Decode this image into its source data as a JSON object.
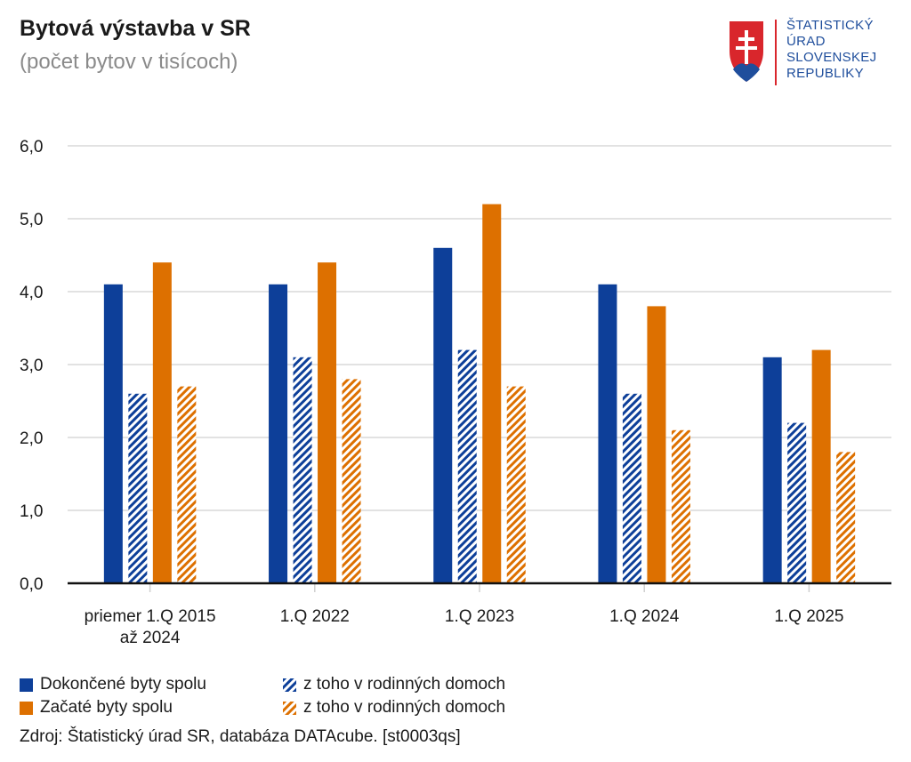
{
  "header": {
    "title": "Bytová výstavba v SR",
    "subtitle": "(počet bytov v tisícoch)"
  },
  "logo": {
    "line1": "ŠTATISTICKÝ",
    "line2": "ÚRAD",
    "line3": "SLOVENSKEJ",
    "line4": "REPUBLIKY"
  },
  "source": "Zdroj: Štatistický úrad SR, databáza DATAcube. [st0003qs]",
  "chart_data": {
    "type": "bar",
    "categories": [
      "priemer 1.Q 2015\naž 2024",
      "1.Q 2022",
      "1.Q 2023",
      "1.Q 2024",
      "1.Q 2025"
    ],
    "series": [
      {
        "name": "Dokončené byty spolu",
        "values": [
          4.1,
          4.1,
          4.6,
          4.1,
          3.1
        ],
        "color": "#0d3f99",
        "pattern": "solid"
      },
      {
        "name": "z toho v rodinných domoch",
        "values": [
          2.6,
          3.1,
          3.2,
          2.6,
          2.2
        ],
        "color": "#0d3f99",
        "pattern": "hatched"
      },
      {
        "name": "Začaté byty spolu",
        "values": [
          4.4,
          4.4,
          5.2,
          3.8,
          3.2
        ],
        "color": "#dd7000",
        "pattern": "solid"
      },
      {
        "name": "z toho v rodinných domoch",
        "values": [
          2.7,
          2.8,
          2.7,
          2.1,
          1.8
        ],
        "color": "#dd7000",
        "pattern": "hatched"
      }
    ],
    "y_ticks": [
      "0,0",
      "1,0",
      "2,0",
      "3,0",
      "4,0",
      "5,0",
      "6,0"
    ],
    "ylim": [
      0,
      6
    ],
    "grid": true,
    "legend_position": "bottom-left"
  }
}
